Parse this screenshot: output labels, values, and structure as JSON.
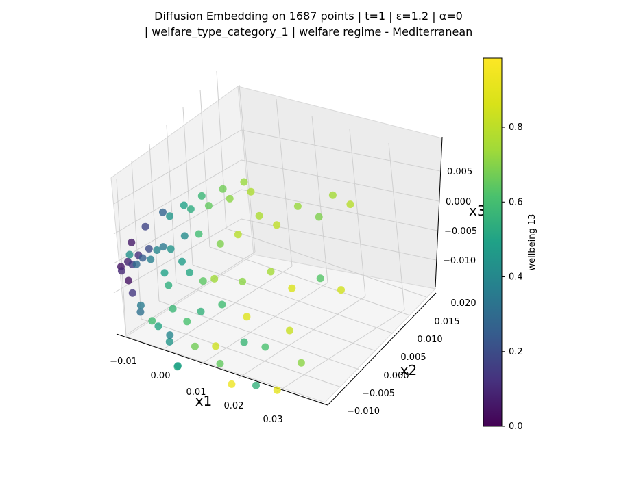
{
  "chart_data": {
    "type": "scatter",
    "title_line1": "Diffusion Embedding on 1687 points | t=1 | ε=1.2 | α=0",
    "title_line2": "| welfare_type_category_1 | welfare regime - Mediterranean",
    "xlabel": "x1",
    "ylabel": "x2",
    "zlabel": "x3",
    "colorbar_label": "wellbeing 13",
    "colormap": "viridis",
    "x_ticks": [
      "−0.01",
      "0.00",
      "0.01",
      "0.02",
      "0.03"
    ],
    "y_ticks": [
      "−0.010",
      "−0.005",
      "0.000",
      "0.005",
      "0.010",
      "0.015",
      "0.020"
    ],
    "z_ticks": [
      "0.005",
      "0.000",
      "−0.005",
      "−0.010"
    ],
    "colorbar_ticks": [
      "0.0",
      "0.2",
      "0.4",
      "0.6",
      "0.8"
    ],
    "grid": true,
    "points": [
      [
        -0.012,
        0.0,
        -0.005,
        0.05
      ],
      [
        -0.011,
        0.001,
        -0.0045,
        0.08
      ],
      [
        -0.01,
        -0.002,
        -0.004,
        0.1
      ],
      [
        -0.009,
        0.002,
        -0.0035,
        0.12
      ],
      [
        -0.008,
        -0.001,
        -0.003,
        0.15
      ],
      [
        -0.007,
        0.003,
        -0.0025,
        0.2
      ],
      [
        -0.006,
        0.0,
        -0.002,
        0.25
      ],
      [
        -0.005,
        -0.003,
        -0.001,
        0.3
      ],
      [
        -0.004,
        0.004,
        -0.002,
        0.35
      ],
      [
        -0.003,
        0.001,
        -0.0005,
        0.4
      ],
      [
        -0.002,
        -0.002,
        0.0,
        0.38
      ],
      [
        -0.001,
        0.003,
        -0.001,
        0.45
      ],
      [
        0.0,
        0.0,
        -0.003,
        0.5
      ],
      [
        0.001,
        0.005,
        0.0005,
        0.42
      ],
      [
        0.002,
        -0.001,
        -0.004,
        0.55
      ],
      [
        0.003,
        0.002,
        -0.0015,
        0.48
      ],
      [
        0.004,
        0.006,
        0.001,
        0.6
      ],
      [
        0.005,
        -0.003,
        -0.006,
        0.58
      ],
      [
        0.006,
        0.001,
        -0.002,
        0.52
      ],
      [
        0.007,
        0.004,
        -0.005,
        0.65
      ],
      [
        0.008,
        -0.002,
        -0.008,
        0.62
      ],
      [
        0.009,
        0.007,
        0.0,
        0.7
      ],
      [
        0.01,
        0.0,
        -0.007,
        0.56
      ],
      [
        0.011,
        0.003,
        -0.003,
        0.75
      ],
      [
        0.012,
        -0.004,
        -0.01,
        0.68
      ],
      [
        0.013,
        0.008,
        0.002,
        0.8
      ],
      [
        0.014,
        0.002,
        -0.006,
        0.6
      ],
      [
        0.015,
        -0.001,
        -0.011,
        0.85
      ],
      [
        0.016,
        0.006,
        -0.004,
        0.72
      ],
      [
        0.017,
        0.01,
        0.005,
        0.78
      ],
      [
        0.018,
        -0.003,
        -0.012,
        0.66
      ],
      [
        0.019,
        0.004,
        -0.008,
        0.9
      ],
      [
        0.02,
        0.012,
        0.003,
        0.82
      ],
      [
        0.021,
        0.001,
        -0.01,
        0.58
      ],
      [
        0.022,
        0.008,
        -0.002,
        0.76
      ],
      [
        0.023,
        -0.005,
        -0.013,
        0.95
      ],
      [
        0.024,
        0.014,
        0.006,
        0.74
      ],
      [
        0.025,
        0.003,
        -0.011,
        0.62
      ],
      [
        0.026,
        0.01,
        -0.005,
        0.88
      ],
      [
        0.027,
        -0.002,
        -0.014,
        0.56
      ],
      [
        0.028,
        0.016,
        0.004,
        0.7
      ],
      [
        0.029,
        0.006,
        -0.009,
        0.84
      ],
      [
        0.03,
        0.018,
        0.007,
        0.76
      ],
      [
        0.031,
        0.0,
        -0.015,
        0.92
      ],
      [
        0.032,
        0.012,
        -0.003,
        0.64
      ],
      [
        0.033,
        0.02,
        0.005,
        0.8
      ],
      [
        0.034,
        0.004,
        -0.012,
        0.72
      ],
      [
        0.035,
        0.015,
        -0.006,
        0.86
      ],
      [
        -0.006,
        -0.004,
        0.001,
        0.44
      ],
      [
        -0.004,
        0.006,
        0.002,
        0.46
      ],
      [
        -0.002,
        -0.005,
        -0.006,
        0.36
      ],
      [
        0.0,
        0.008,
        0.003,
        0.54
      ],
      [
        0.002,
        -0.006,
        -0.007,
        0.6
      ],
      [
        0.004,
        0.009,
        0.004,
        0.66
      ],
      [
        0.006,
        -0.005,
        -0.009,
        0.4
      ],
      [
        0.008,
        0.011,
        0.005,
        0.72
      ],
      [
        0.01,
        -0.007,
        -0.012,
        0.5
      ],
      [
        0.012,
        0.013,
        0.006,
        0.78
      ],
      [
        -0.01,
        0.001,
        -0.001,
        0.06
      ],
      [
        -0.009,
        -0.001,
        -0.006,
        0.04
      ],
      [
        -0.008,
        0.003,
        0.001,
        0.18
      ],
      [
        -0.007,
        -0.002,
        -0.007,
        0.14
      ],
      [
        -0.005,
        0.005,
        0.003,
        0.28
      ],
      [
        -0.003,
        -0.004,
        -0.008,
        0.32
      ],
      [
        -0.001,
        0.007,
        0.004,
        0.5
      ],
      [
        0.001,
        -0.003,
        -0.01,
        0.52
      ],
      [
        0.003,
        0.008,
        0.006,
        0.58
      ],
      [
        0.005,
        -0.004,
        -0.011,
        0.46
      ],
      [
        0.007,
        0.01,
        0.007,
        0.68
      ],
      [
        0.009,
        -0.006,
        -0.013,
        0.54
      ],
      [
        0.011,
        0.012,
        0.008,
        0.74
      ]
    ]
  }
}
